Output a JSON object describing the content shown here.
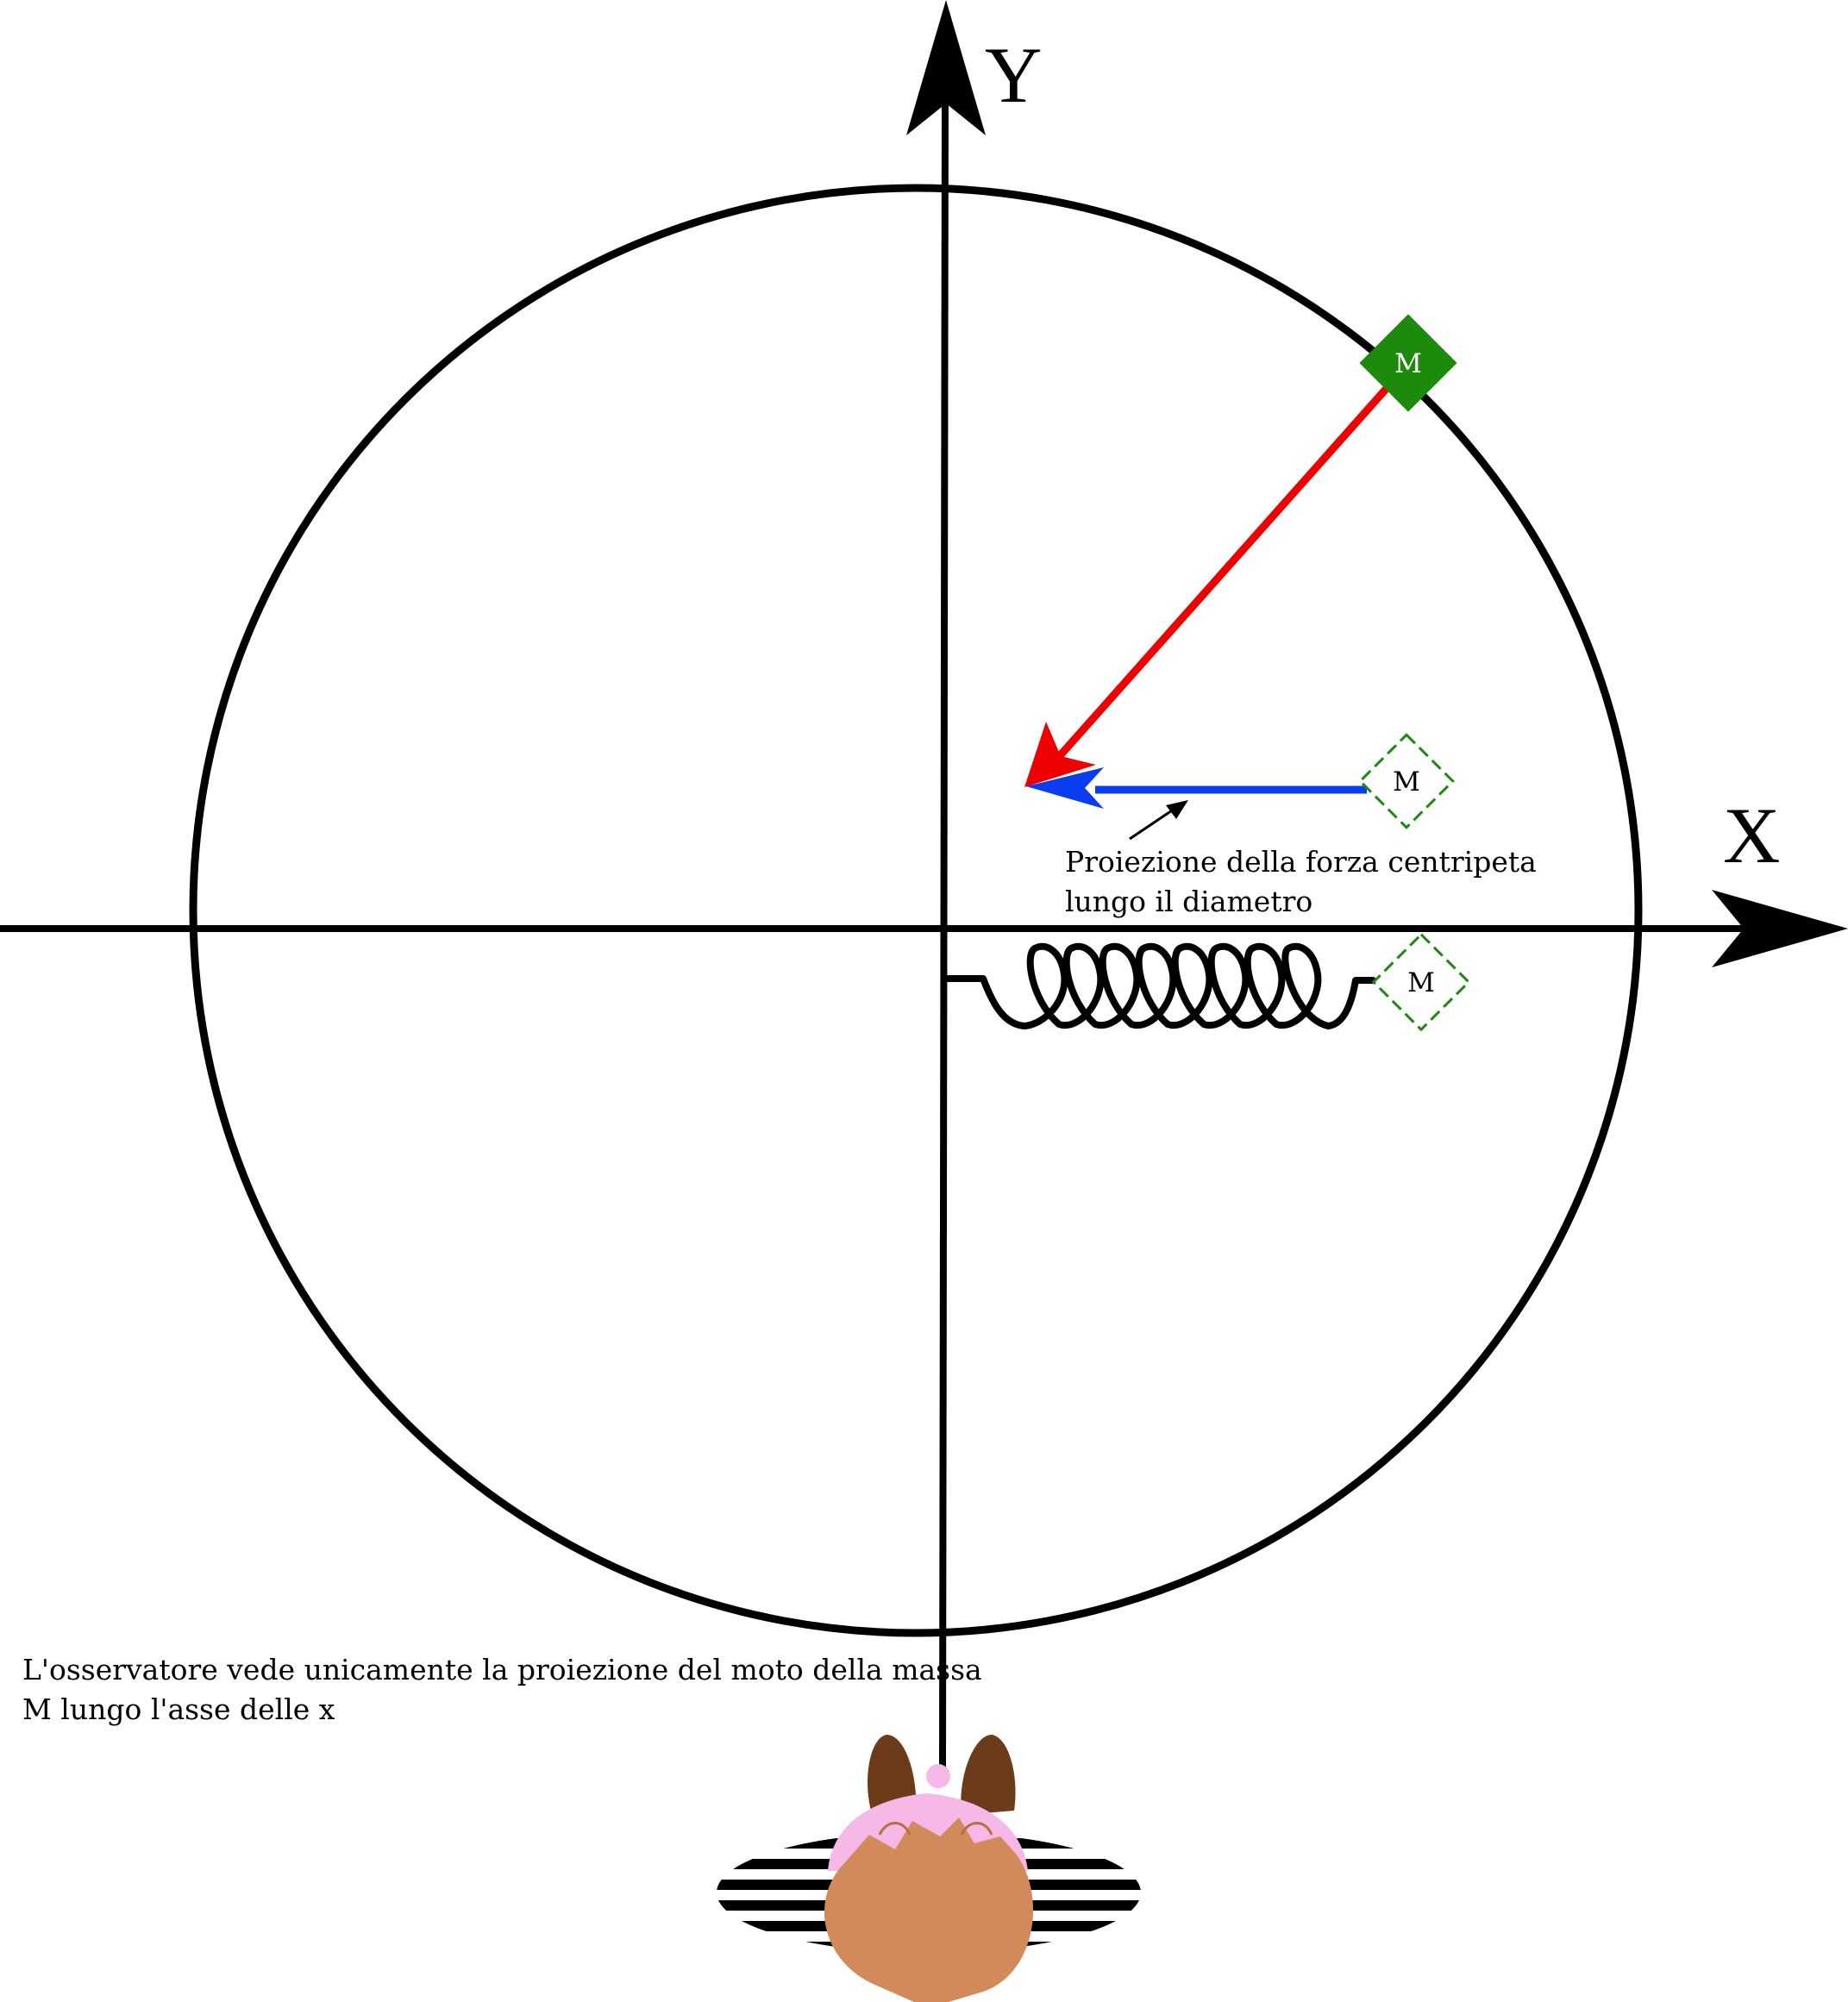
{
  "axes": {
    "x_label": "X",
    "y_label": "Y"
  },
  "masses": {
    "on_circle": "M",
    "projection": "M",
    "spring": "M"
  },
  "annotations": {
    "projection_line1": "Proiezione della forza centripeta",
    "projection_line2": "lungo il diametro",
    "observer_line1": "L'osservatore vede unicamente la proiezione del moto della massa",
    "observer_line2": "M lungo l'asse delle x"
  },
  "colors": {
    "axis": "#000000",
    "circle": "#000000",
    "centripetal_force": "#ee0000",
    "projection_force": "#0a3cf0",
    "mass_fill": "#1b8a0d",
    "mass_outline": "#1b8a0d",
    "observer_skin": "#d28a5a",
    "observer_hair": "#f6b8e6",
    "observer_ears": "#6b3b1a"
  }
}
